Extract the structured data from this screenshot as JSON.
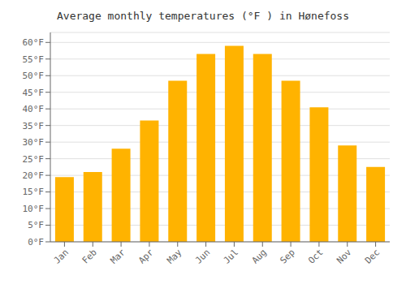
{
  "chart_data": {
    "type": "bar",
    "title": "Average monthly temperatures (°F ) in Hønefoss",
    "categories": [
      "Jan",
      "Feb",
      "Mar",
      "Apr",
      "May",
      "Jun",
      "Jul",
      "Aug",
      "Sep",
      "Oct",
      "Nov",
      "Dec"
    ],
    "values": [
      19.5,
      21.0,
      28.0,
      36.5,
      48.5,
      56.5,
      59.0,
      56.5,
      48.5,
      40.5,
      29.0,
      22.5
    ],
    "color": "#FFB300",
    "ylim": [
      0,
      63
    ],
    "yticks": [
      {
        "value": 0,
        "label": "0°F"
      },
      {
        "value": 5,
        "label": "5°F"
      },
      {
        "value": 10,
        "label": "10°F"
      },
      {
        "value": 15,
        "label": "15°F"
      },
      {
        "value": 20,
        "label": "20°F"
      },
      {
        "value": 25,
        "label": "25°F"
      },
      {
        "value": 30,
        "label": "30°F"
      },
      {
        "value": 35,
        "label": "35°F"
      },
      {
        "value": 40,
        "label": "40°F"
      },
      {
        "value": 45,
        "label": "45°F"
      },
      {
        "value": 50,
        "label": "50°F"
      },
      {
        "value": 55,
        "label": "55°F"
      },
      {
        "value": 60,
        "label": "60°F"
      }
    ],
    "grid": true
  }
}
